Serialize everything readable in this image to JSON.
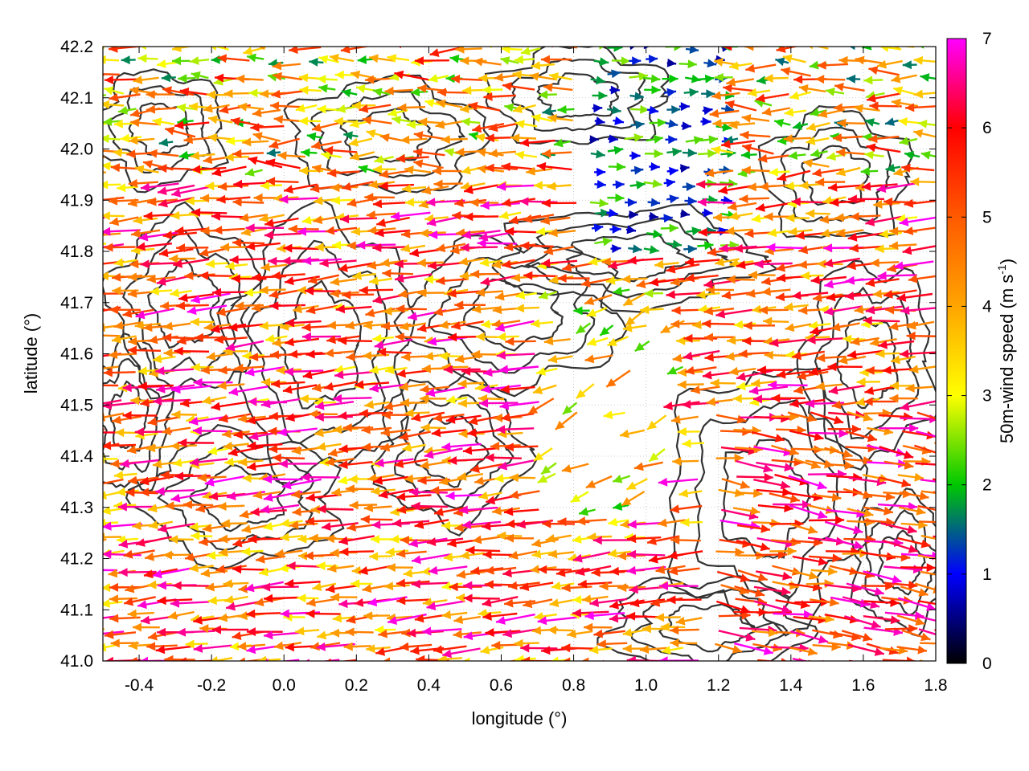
{
  "chart_data": {
    "type": "vector-field",
    "title": "",
    "xlabel": "longitude (°)",
    "ylabel": "latitude (°)",
    "xlim": [
      -0.5,
      1.8
    ],
    "ylim": [
      41.0,
      42.2
    ],
    "x_ticks": [
      "-0.4",
      "-0.2",
      "0.0",
      "0.2",
      "0.4",
      "0.6",
      "0.8",
      "1.0",
      "1.2",
      "1.4",
      "1.6",
      "1.8"
    ],
    "y_ticks": [
      "41.0",
      "41.1",
      "41.2",
      "41.3",
      "41.4",
      "41.5",
      "41.6",
      "41.7",
      "41.8",
      "41.9",
      "42.0",
      "42.1",
      "42.2"
    ],
    "grid": true,
    "colorbar": {
      "label_main": "50m-wind speed (m s",
      "label_sup": "-1",
      "label_close": ")",
      "range": [
        0,
        7
      ],
      "ticks": [
        "0",
        "1",
        "2",
        "3",
        "4",
        "5",
        "6",
        "7"
      ],
      "palette": [
        "#000000",
        "#0000ff",
        "#00c800",
        "#ffff00",
        "#ffa500",
        "#ff5a00",
        "#ff0000",
        "#ff00ff"
      ]
    },
    "contour_color": "#333333",
    "wind_regions": [
      {
        "region": "west of 0.8° (most of the domain)",
        "direction": "westward (from east)",
        "speed_range": [
          3,
          7
        ]
      },
      {
        "region": "0.9°–1.2° E, 41.8°–42.2° N",
        "direction": "eastward",
        "speed_range": [
          0.5,
          2.5
        ]
      },
      {
        "region": "east of 1.2°, south of 41.5° N",
        "direction": "eastward",
        "speed_range": [
          4,
          7
        ]
      },
      {
        "region": "east of 1.2°, north of 41.5° N",
        "direction": "westward",
        "speed_range": [
          3,
          6.5
        ]
      }
    ],
    "note_values_estimated": true
  }
}
